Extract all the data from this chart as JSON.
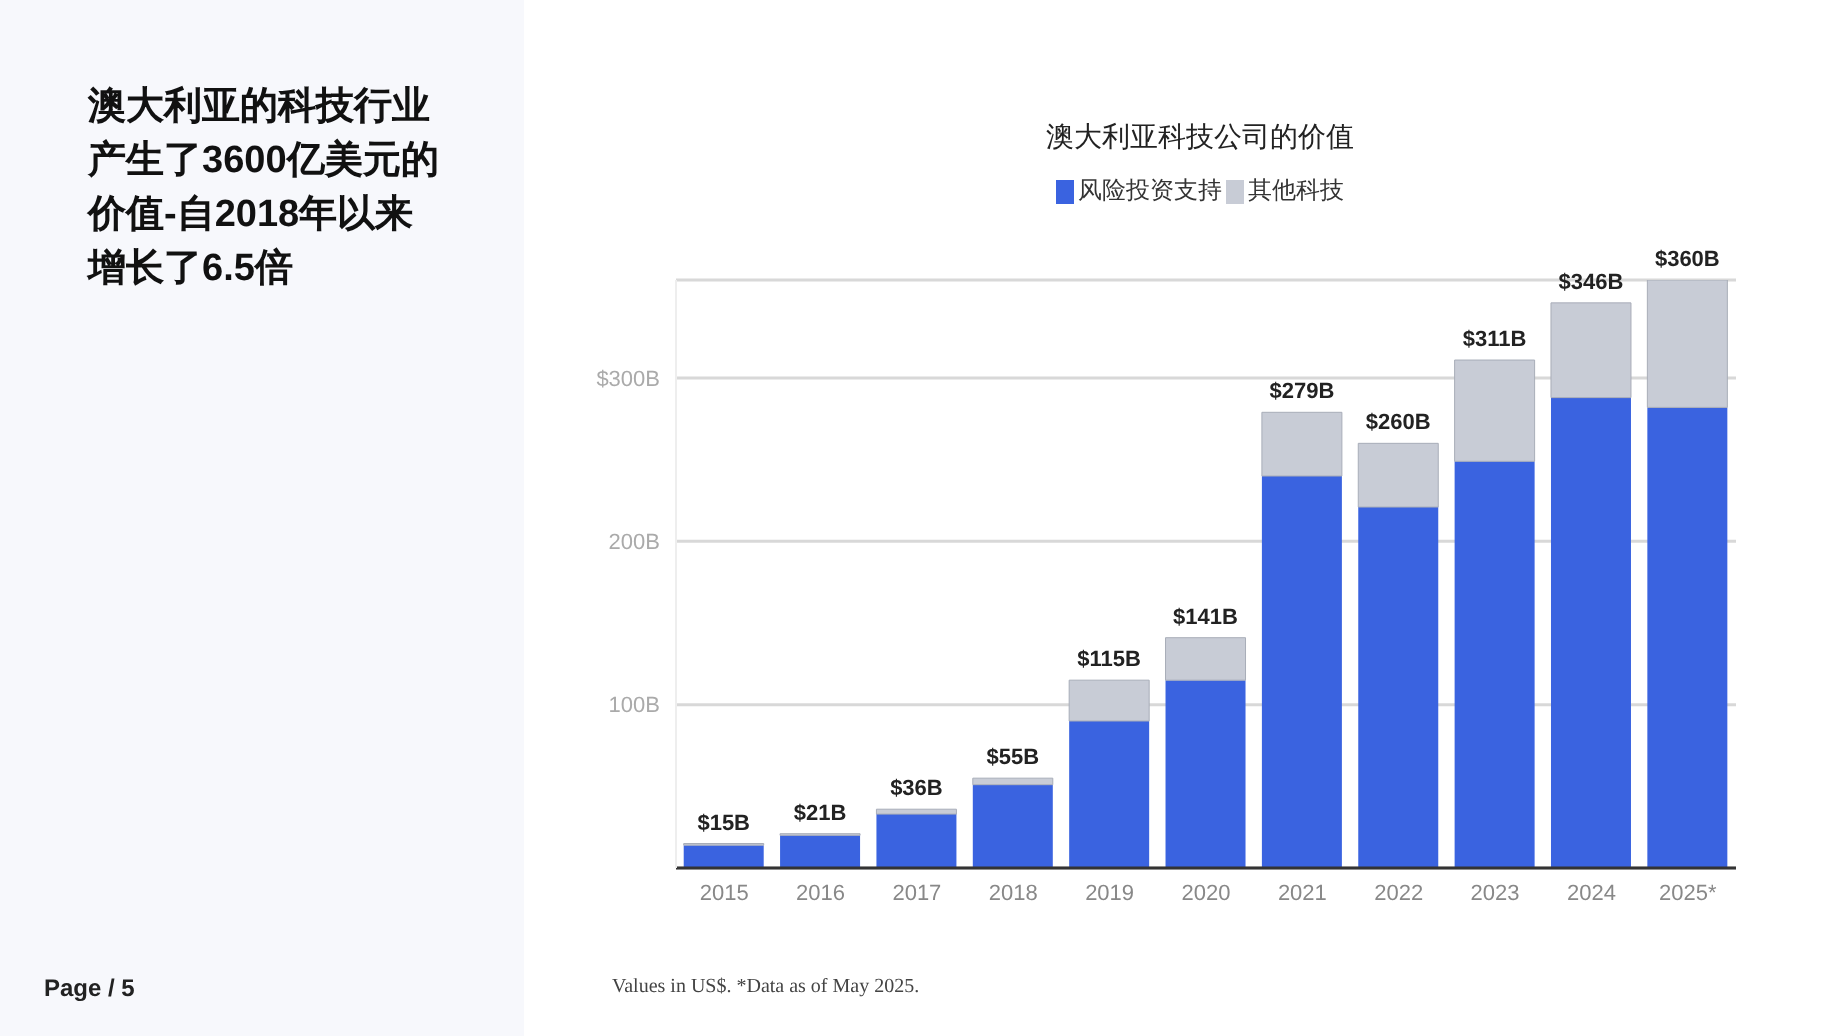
{
  "chart_data": {
    "type": "bar",
    "title": "澳大利亚的科技行业产生了3600亿美元的价值-自2018年以来增长了6.5倍",
    "subtitle": "澳大利亚科技公司的价值",
    "categories": [
      "2015",
      "2016",
      "2017",
      "2018",
      "2019",
      "2020",
      "2021",
      "2022",
      "2023",
      "2024",
      "2025*"
    ],
    "series": [
      {
        "name": "风险投资支持",
        "color": "#3a63e0",
        "values": [
          14,
          20,
          33,
          51,
          90,
          115,
          240,
          221,
          249,
          288,
          282
        ]
      },
      {
        "name": "其他科技",
        "color": "#c8ccd6",
        "values": [
          1,
          1,
          3,
          4,
          25,
          26,
          39,
          39,
          62,
          58,
          78
        ]
      }
    ],
    "stacked": true,
    "totals": [
      "$15B",
      "$21B",
      "$36B",
      "$55B",
      "$115B",
      "$141B",
      "$279B",
      "$260B",
      "$311B",
      "$346B",
      "$360B"
    ],
    "ylim": [
      0,
      360
    ],
    "yticks": [
      {
        "value": 100,
        "label": "100B"
      },
      {
        "value": 200,
        "label": "200B"
      },
      {
        "value": 300,
        "label": "$300B"
      }
    ],
    "grid": "y",
    "legend": "top",
    "annotations": [
      "Values in US$. *Data as of May 2025.",
      "Page / 5"
    ]
  }
}
